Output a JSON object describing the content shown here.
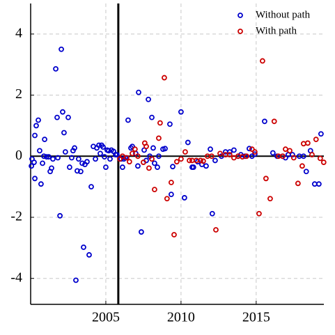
{
  "chart_data": {
    "type": "scatter",
    "xlim": [
      2000,
      2019.5
    ],
    "ylim": [
      -4.85,
      5
    ],
    "xticks": [
      2005,
      2010,
      2015
    ],
    "yticks": [
      -4,
      -2,
      0,
      2,
      4
    ],
    "grid": true,
    "legend": "upper right",
    "reference_lines": {
      "x": 2005.83,
      "y": 0
    },
    "series": [
      {
        "name": "Without path",
        "color": "#0000cc",
        "x": [
          2000.05,
          2000.09,
          2000.23,
          2000.28,
          2000.37,
          2000.51,
          2000.6,
          2000.28,
          2000.69,
          2000.79,
          2000.88,
          2000.93,
          2001.06,
          2001.2,
          2001.3,
          2001.39,
          2001.48,
          2001.67,
          2001.76,
          2001.81,
          2001.95,
          2002.04,
          2002.13,
          2002.22,
          2002.31,
          2002.5,
          2002.59,
          2002.73,
          2002.82,
          2002.92,
          2003.01,
          2003.1,
          2003.19,
          2003.33,
          2003.43,
          2003.52,
          2003.61,
          2003.75,
          2003.89,
          2004.03,
          2004.17,
          2004.31,
          2004.4,
          2004.54,
          2004.63,
          2004.72,
          2004.82,
          2004.91,
          2005.0,
          2005.09,
          2005.19,
          2005.28,
          2005.37,
          2005.51,
          2005.65,
          2005.74,
          2006.02,
          2006.11,
          2006.2,
          2006.3,
          2006.48,
          2006.67,
          2006.76,
          2006.99,
          2007.13,
          2007.18,
          2007.36,
          2007.55,
          2007.69,
          2007.83,
          2007.92,
          2008.06,
          2008.15,
          2008.24,
          2008.43,
          2008.52,
          2008.8,
          2008.94,
          2009.26,
          2009.35,
          2009.45,
          2010.0,
          2010.23,
          2010.46,
          2010.74,
          2010.83,
          2011.11,
          2011.39,
          2011.67,
          2011.95,
          2012.08,
          2012.27,
          2012.69,
          2012.96,
          2013.24,
          2013.52,
          2013.8,
          2013.98,
          2014.26,
          2014.54,
          2014.72,
          2014.91,
          2015.56,
          2016.11,
          2016.39,
          2016.76,
          2016.95,
          2017.13,
          2017.41,
          2017.87,
          2018.15,
          2018.33,
          2018.61,
          2018.89,
          2019.17,
          2019.31
        ],
        "values": [
          -0.32,
          -0.09,
          -0.2,
          0.68,
          1.0,
          1.18,
          0.18,
          -0.73,
          -0.91,
          -0.23,
          0,
          0.55,
          -0.02,
          -0.02,
          -0.5,
          -0.39,
          -0.09,
          2.86,
          1.27,
          -0.05,
          -1.95,
          3.5,
          1.45,
          0.77,
          0.14,
          1.27,
          -0.36,
          -0.05,
          0.18,
          0.27,
          -4.06,
          -0.48,
          -0.09,
          -0.5,
          -0.23,
          -2.98,
          -0.27,
          -0.18,
          -3.23,
          -1.0,
          0.32,
          -0.09,
          0.27,
          0.36,
          0.09,
          0.36,
          0.3,
          -0.02,
          -0.36,
          0.2,
          0.18,
          -0.09,
          0.2,
          0.16,
          0.05,
          0.05,
          -0.09,
          -0.36,
          -0.09,
          -0.05,
          1.18,
          0.27,
          0.32,
          0.09,
          -0.32,
          2.09,
          -2.48,
          0.2,
          -0.14,
          1.86,
          0,
          1.27,
          0.27,
          -0.23,
          -0.36,
          0,
          0.23,
          0.25,
          1.05,
          -1.25,
          -0.34,
          1.45,
          -1.36,
          0.45,
          -0.36,
          -0.36,
          -0.18,
          -0.27,
          -0.32,
          0.23,
          -1.88,
          -0.14,
          0,
          0.14,
          0.14,
          0.2,
          0,
          0.05,
          0,
          0.25,
          0,
          0.07,
          1.14,
          0.11,
          0,
          0,
          -0.05,
          0.05,
          0.05,
          0,
          0,
          -0.5,
          0.18,
          -0.91,
          -0.91,
          0.73
        ]
      },
      {
        "name": "With path",
        "color": "#cc0000",
        "x": [
          2005.93,
          2006.11,
          2006.39,
          2006.57,
          2006.76,
          2006.94,
          2007.13,
          2007.5,
          2007.59,
          2007.69,
          2007.87,
          2008.06,
          2008.24,
          2008.52,
          2008.61,
          2008.89,
          2009.07,
          2009.35,
          2009.54,
          2009.72,
          2010.0,
          2010.28,
          2010.56,
          2010.74,
          2011.02,
          2011.3,
          2011.48,
          2011.76,
          2012.04,
          2012.32,
          2012.6,
          2012.96,
          2013.24,
          2013.52,
          2013.8,
          2014.08,
          2014.36,
          2014.72,
          2014.91,
          2015.19,
          2015.42,
          2015.65,
          2015.93,
          2016.2,
          2016.48,
          2016.76,
          2016.95,
          2017.23,
          2017.5,
          2017.78,
          2018.06,
          2018.15,
          2018.43,
          2018.71,
          2018.98,
          2019.26,
          2019.49
        ],
        "values": [
          -0.09,
          0,
          -0.05,
          -0.18,
          0.09,
          0.23,
          0,
          -0.2,
          0.43,
          0.32,
          -0.39,
          -0.09,
          -1.09,
          0.59,
          1.09,
          2.57,
          -1.39,
          -0.86,
          -2.57,
          -0.18,
          -0.09,
          0.14,
          -0.14,
          -0.14,
          -0.14,
          -0.14,
          -0.16,
          0,
          0,
          -2.41,
          0.09,
          0.05,
          0.05,
          -0.05,
          0,
          -0.02,
          0,
          0.23,
          0.14,
          -1.88,
          3.12,
          -0.73,
          -1.39,
          1.14,
          0,
          0,
          0.23,
          0.18,
          -0.05,
          -0.89,
          -0.32,
          0.41,
          0.43,
          0.05,
          0.55,
          -0.07,
          -0.2
        ]
      }
    ]
  }
}
